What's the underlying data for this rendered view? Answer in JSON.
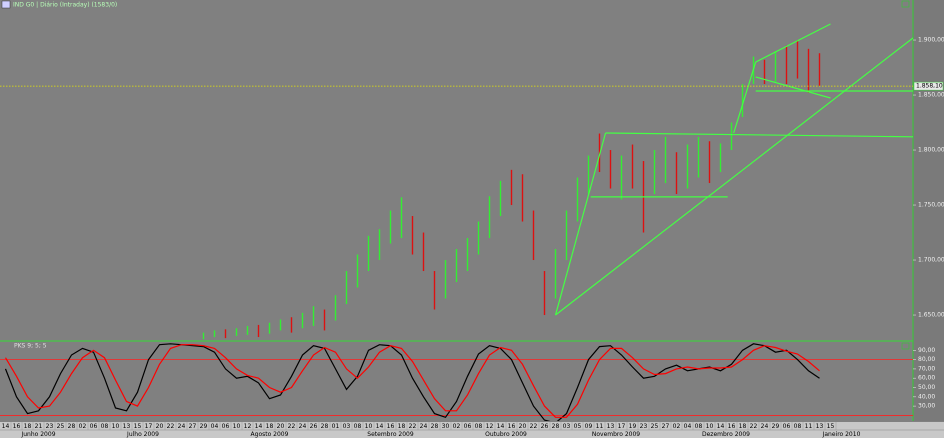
{
  "header": {
    "title": "IND G0 | Diário (Intraday) (1583/0)"
  },
  "chart_data": [
    {
      "type": "hilo",
      "x": [
        36,
        38,
        40,
        42,
        44,
        46,
        48,
        50,
        52,
        54,
        56,
        58,
        60,
        62,
        64,
        66,
        68,
        70,
        72,
        74,
        76,
        78,
        80,
        82,
        84,
        86,
        88,
        90,
        92,
        94,
        96,
        98,
        100,
        102,
        104,
        106,
        108,
        110,
        112,
        114,
        116,
        118,
        120,
        122,
        124,
        126,
        128,
        130,
        132,
        134,
        136,
        138,
        140,
        142,
        144,
        146,
        148
      ],
      "low": [
        1628,
        1630,
        1629,
        1631,
        1632,
        1630,
        1633,
        1636,
        1634,
        1638,
        1640,
        1636,
        1645,
        1660,
        1675,
        1690,
        1700,
        1715,
        1720,
        1705,
        1690,
        1655,
        1665,
        1680,
        1690,
        1705,
        1720,
        1740,
        1750,
        1735,
        1700,
        1650,
        1665,
        1700,
        1735,
        1760,
        1780,
        1765,
        1755,
        1765,
        1725,
        1760,
        1770,
        1760,
        1765,
        1775,
        1770,
        1780,
        1800,
        1830,
        1860,
        1860,
        1862,
        1860,
        1865,
        1852,
        1858
      ],
      "high": [
        1634,
        1636,
        1637,
        1638,
        1640,
        1641,
        1643,
        1646,
        1648,
        1652,
        1658,
        1655,
        1668,
        1690,
        1705,
        1722,
        1728,
        1745,
        1757,
        1740,
        1725,
        1690,
        1700,
        1710,
        1720,
        1735,
        1758,
        1772,
        1782,
        1778,
        1745,
        1690,
        1710,
        1745,
        1775,
        1795,
        1815,
        1800,
        1795,
        1805,
        1790,
        1800,
        1812,
        1798,
        1805,
        1812,
        1808,
        1806,
        1825,
        1860,
        1885,
        1882,
        1890,
        1895,
        1900,
        1892,
        1888
      ],
      "colors": [
        "#33ee33",
        "#33ee33",
        "#dd1111",
        "#33ee33",
        "#33ee33",
        "#dd1111",
        "#33ee33",
        "#33ee33",
        "#dd1111",
        "#33ee33",
        "#33ee33",
        "#dd1111",
        "#33ee33",
        "#33ee33",
        "#33ee33",
        "#33ee33",
        "#33ee33",
        "#33ee33",
        "#33ee33",
        "#dd1111",
        "#dd1111",
        "#dd1111",
        "#33ee33",
        "#33ee33",
        "#33ee33",
        "#33ee33",
        "#33ee33",
        "#33ee33",
        "#dd1111",
        "#dd1111",
        "#dd1111",
        "#dd1111",
        "#33ee33",
        "#33ee33",
        "#33ee33",
        "#33ee33",
        "#dd1111",
        "#dd1111",
        "#33ee33",
        "#dd1111",
        "#dd1111",
        "#33ee33",
        "#33ee33",
        "#dd1111",
        "#33ee33",
        "#33ee33",
        "#dd1111",
        "#33ee33",
        "#33ee33",
        "#33ee33",
        "#33ee33",
        "#dd1111",
        "#33ee33",
        "#dd1111",
        "#dd1111",
        "#dd1111",
        "#dd1111"
      ],
      "xlim": [
        -1,
        165
      ],
      "ylim": [
        1627.3,
        1936.4
      ],
      "yticks": [
        {
          "value": 1650,
          "label": "1.650,00"
        },
        {
          "value": 1700,
          "label": "1.700,00"
        },
        {
          "value": 1750,
          "label": "1.750,00"
        },
        {
          "value": 1800,
          "label": "1.800,00"
        },
        {
          "value": 1850,
          "label": "1.850,00"
        },
        {
          "value": 1900,
          "label": "1.900,00"
        }
      ],
      "last_price": {
        "value": 1858.1,
        "label": "1.858,10"
      },
      "last_price_color": "#e8e800",
      "trendline_color": "#44ff44",
      "trendlines": [
        [
          100,
          1650,
          109.1,
          1815.5
        ],
        [
          109.1,
          1815.5,
          165,
          1812
        ],
        [
          100,
          1650,
          165,
          1901.9
        ],
        [
          106.4,
          1757.4,
          131.3,
          1757.4
        ],
        [
          132.4,
          1815.5,
          136.4,
          1880
        ],
        [
          136.4,
          1880,
          150,
          1914.6
        ],
        [
          136.4,
          1866.4,
          150,
          1847.3
        ],
        [
          136.4,
          1853.7,
          165,
          1853.7
        ]
      ]
    },
    {
      "type": "line",
      "title": "PKS 9; 5; 5",
      "x": [
        0,
        2,
        4,
        6,
        8,
        10,
        12,
        14,
        16,
        18,
        20,
        22,
        24,
        26,
        28,
        30,
        32,
        34,
        36,
        38,
        40,
        42,
        44,
        46,
        48,
        50,
        52,
        54,
        56,
        58,
        60,
        62,
        64,
        66,
        68,
        70,
        72,
        74,
        76,
        78,
        80,
        82,
        84,
        86,
        88,
        90,
        92,
        94,
        96,
        98,
        100,
        102,
        104,
        106,
        108,
        110,
        112,
        114,
        116,
        118,
        120,
        122,
        124,
        126,
        128,
        130,
        132,
        134,
        136,
        138,
        140,
        142,
        144,
        146,
        148
      ],
      "series": [
        {
          "color": "#000000",
          "values": [
            70,
            40,
            22,
            25,
            40,
            65,
            85,
            92,
            88,
            60,
            28,
            25,
            45,
            80,
            96,
            97,
            96,
            95,
            94,
            88,
            70,
            60,
            62,
            55,
            38,
            42,
            62,
            85,
            95,
            92,
            70,
            48,
            62,
            90,
            96,
            95,
            85,
            60,
            40,
            22,
            18,
            35,
            62,
            86,
            95,
            92,
            80,
            55,
            30,
            15,
            12,
            22,
            50,
            80,
            94,
            95,
            85,
            72,
            60,
            62,
            70,
            74,
            68,
            70,
            72,
            68,
            75,
            90,
            97,
            95,
            88,
            90,
            80,
            68,
            60
          ]
        },
        {
          "color": "#ff0000",
          "values": [
            82,
            62,
            40,
            28,
            30,
            45,
            65,
            82,
            90,
            82,
            58,
            35,
            30,
            50,
            75,
            92,
            96,
            96,
            95,
            92,
            82,
            70,
            63,
            60,
            50,
            45,
            50,
            68,
            85,
            93,
            88,
            70,
            60,
            72,
            88,
            95,
            92,
            78,
            58,
            38,
            25,
            25,
            42,
            65,
            85,
            93,
            90,
            75,
            52,
            30,
            18,
            18,
            32,
            58,
            80,
            92,
            92,
            82,
            70,
            64,
            65,
            70,
            72,
            70,
            71,
            71,
            72,
            80,
            90,
            95,
            93,
            89,
            86,
            78,
            68
          ]
        }
      ],
      "xlim": [
        -1,
        165
      ],
      "ylim": [
        14,
        100
      ],
      "yticks": [
        {
          "value": 30,
          "label": "30,00"
        },
        {
          "value": 40,
          "label": "40,00"
        },
        {
          "value": 50,
          "label": "50,00"
        },
        {
          "value": 60,
          "label": "60,00"
        },
        {
          "value": 70,
          "label": "70,00"
        },
        {
          "value": 80,
          "label": "80,00"
        },
        {
          "value": 90,
          "label": "90,00"
        }
      ],
      "levels": [
        80,
        20
      ],
      "level_color": "#ff2020",
      "xticks": [
        {
          "value": 0,
          "label": "14"
        },
        {
          "value": 2,
          "label": "16"
        },
        {
          "value": 4,
          "label": "18"
        },
        {
          "value": 6,
          "label": "21"
        },
        {
          "value": 8,
          "label": "23"
        },
        {
          "value": 10,
          "label": "25"
        },
        {
          "value": 12,
          "label": "28"
        },
        {
          "value": 14,
          "label": "02"
        },
        {
          "value": 16,
          "label": "06"
        },
        {
          "value": 18,
          "label": "08"
        },
        {
          "value": 20,
          "label": "10"
        },
        {
          "value": 22,
          "label": "13"
        },
        {
          "value": 24,
          "label": "15"
        },
        {
          "value": 26,
          "label": "17"
        },
        {
          "value": 28,
          "label": "20"
        },
        {
          "value": 30,
          "label": "22"
        },
        {
          "value": 32,
          "label": "24"
        },
        {
          "value": 34,
          "label": "27"
        },
        {
          "value": 36,
          "label": "29"
        },
        {
          "value": 38,
          "label": "04"
        },
        {
          "value": 40,
          "label": "06"
        },
        {
          "value": 42,
          "label": "10"
        },
        {
          "value": 44,
          "label": "12"
        },
        {
          "value": 46,
          "label": "14"
        },
        {
          "value": 48,
          "label": "18"
        },
        {
          "value": 50,
          "label": "20"
        },
        {
          "value": 52,
          "label": "22"
        },
        {
          "value": 54,
          "label": "24"
        },
        {
          "value": 56,
          "label": "26"
        },
        {
          "value": 58,
          "label": "28"
        },
        {
          "value": 60,
          "label": "01"
        },
        {
          "value": 62,
          "label": "03"
        },
        {
          "value": 64,
          "label": "08"
        },
        {
          "value": 66,
          "label": "10"
        },
        {
          "value": 68,
          "label": "14"
        },
        {
          "value": 70,
          "label": "16"
        },
        {
          "value": 72,
          "label": "18"
        },
        {
          "value": 74,
          "label": "22"
        },
        {
          "value": 76,
          "label": "24"
        },
        {
          "value": 78,
          "label": "28"
        },
        {
          "value": 80,
          "label": "30"
        },
        {
          "value": 82,
          "label": "02"
        },
        {
          "value": 84,
          "label": "06"
        },
        {
          "value": 86,
          "label": "08"
        },
        {
          "value": 88,
          "label": "12"
        },
        {
          "value": 90,
          "label": "14"
        },
        {
          "value": 92,
          "label": "16"
        },
        {
          "value": 94,
          "label": "20"
        },
        {
          "value": 96,
          "label": "22"
        },
        {
          "value": 98,
          "label": "26"
        },
        {
          "value": 100,
          "label": "28"
        },
        {
          "value": 102,
          "label": "03"
        },
        {
          "value": 104,
          "label": "05"
        },
        {
          "value": 106,
          "label": "09"
        },
        {
          "value": 108,
          "label": "11"
        },
        {
          "value": 110,
          "label": "13"
        },
        {
          "value": 112,
          "label": "17"
        },
        {
          "value": 114,
          "label": "19"
        },
        {
          "value": 116,
          "label": "23"
        },
        {
          "value": 118,
          "label": "25"
        },
        {
          "value": 120,
          "label": "27"
        },
        {
          "value": 122,
          "label": "02"
        },
        {
          "value": 124,
          "label": "04"
        },
        {
          "value": 126,
          "label": "08"
        },
        {
          "value": 128,
          "label": "10"
        },
        {
          "value": 130,
          "label": "14"
        },
        {
          "value": 132,
          "label": "16"
        },
        {
          "value": 134,
          "label": "18"
        },
        {
          "value": 136,
          "label": "22"
        },
        {
          "value": 138,
          "label": "24"
        },
        {
          "value": 140,
          "label": "29"
        },
        {
          "value": 142,
          "label": "06"
        },
        {
          "value": 144,
          "label": "08"
        },
        {
          "value": 146,
          "label": "11"
        },
        {
          "value": 148,
          "label": "13"
        },
        {
          "value": 150,
          "label": "15"
        }
      ],
      "month_ticks": [
        {
          "value": 6,
          "label": "Junho 2009"
        },
        {
          "value": 25,
          "label": "Julho 2009"
        },
        {
          "value": 48,
          "label": "Agosto 2009"
        },
        {
          "value": 70,
          "label": "Setembro 2009"
        },
        {
          "value": 91,
          "label": "Outubro 2009"
        },
        {
          "value": 111,
          "label": "Novembro 2009"
        },
        {
          "value": 131,
          "label": "Dezembro 2009"
        },
        {
          "value": 152,
          "label": "Janeiro 2010"
        }
      ]
    }
  ]
}
